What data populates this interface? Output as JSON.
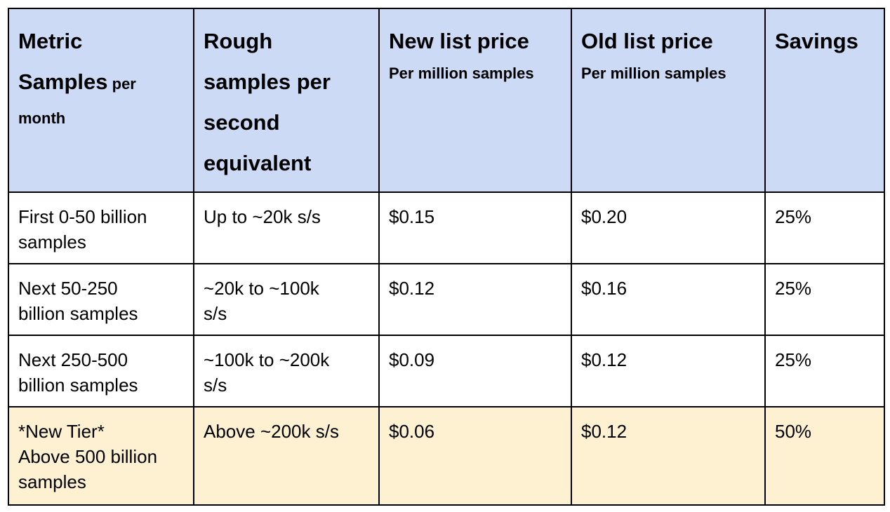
{
  "headers": [
    {
      "title": "Metric",
      "title2": "Samples",
      "suffix": " per",
      "line3": "month"
    },
    {
      "lines": [
        "Rough",
        "samples per",
        "second",
        "equivalent"
      ]
    },
    {
      "title": "New list price",
      "sub": "Per million samples"
    },
    {
      "title": "Old list price",
      "sub": "Per million samples"
    },
    {
      "title": "Savings"
    }
  ],
  "rows": [
    {
      "metric": [
        "First 0-50 billion",
        "samples"
      ],
      "rough": [
        "Up to ~20k s/s"
      ],
      "new_price": "$0.15",
      "old_price": "$0.20",
      "savings": "25%"
    },
    {
      "metric": [
        "Next 50-250",
        "billion samples"
      ],
      "rough": [
        "~20k to ~100k",
        "s/s"
      ],
      "new_price": "$0.12",
      "old_price": "$0.16",
      "savings": "25%"
    },
    {
      "metric": [
        "Next 250-500",
        "billion samples"
      ],
      "rough": [
        "~100k to ~200k",
        "s/s"
      ],
      "new_price": "$0.09",
      "old_price": "$0.12",
      "savings": "25%"
    },
    {
      "metric": [
        "*New Tier*",
        "Above 500 billion",
        "samples"
      ],
      "rough": [
        "Above ~200k s/s"
      ],
      "new_price": "$0.06",
      "old_price": "$0.12",
      "savings": "50%"
    }
  ],
  "colors": {
    "header_bg": "#ccdaf5",
    "highlight_bg": "#fdf1d2",
    "border": "#000000"
  }
}
